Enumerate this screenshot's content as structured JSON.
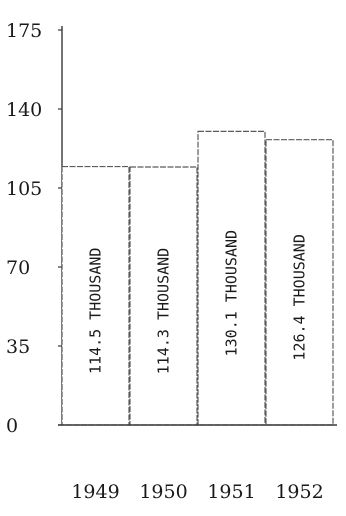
{
  "chart_data": {
    "type": "bar",
    "categories": [
      "1949",
      "1950",
      "1951",
      "1952"
    ],
    "values": [
      114.5,
      114.3,
      130.1,
      126.4
    ],
    "bar_labels": [
      "114.5 THOUSAND",
      "114.3 THOUSAND",
      "130.1 THOUSAND",
      "126.4 THOUSAND"
    ],
    "yticks": [
      0,
      35,
      70,
      105,
      140,
      175
    ],
    "ytick_labels": [
      "0",
      "35",
      "70",
      "105",
      "140",
      "175"
    ],
    "ylim": [
      0,
      175
    ],
    "title": "",
    "xlabel": "",
    "ylabel": "",
    "grid": false,
    "colors": {
      "ink": "#1a1a1a",
      "bar_outline": "#5a5a5a",
      "background": "#ffffff"
    }
  }
}
